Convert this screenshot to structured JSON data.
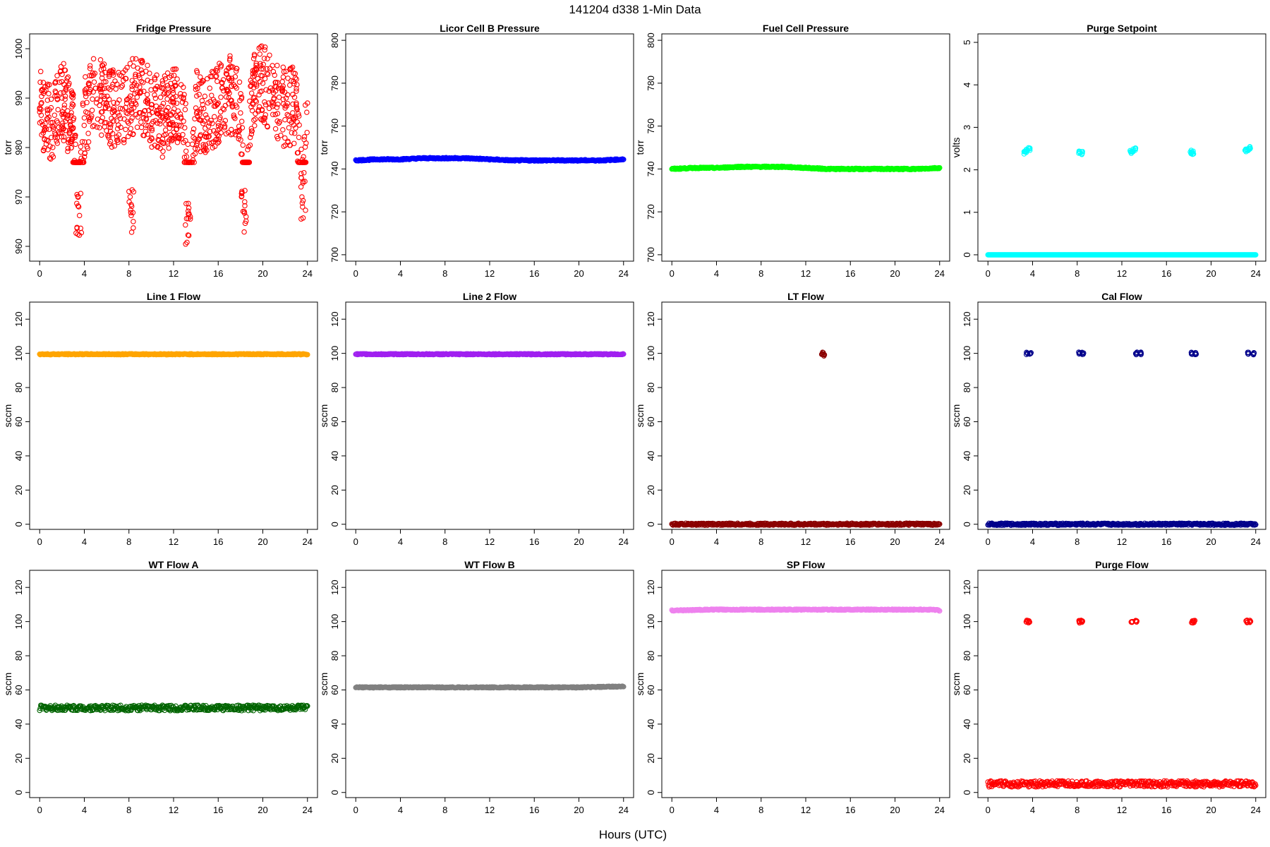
{
  "figure": {
    "title": "141204   d338   1-Min Data",
    "xlabel": "Hours (UTC)"
  },
  "chart_data": [
    {
      "type": "scatter",
      "title": "Fridge Pressure",
      "ylabel": "torr",
      "color": "#ff0000",
      "xlim": [
        0,
        24
      ],
      "ylim": [
        957,
        1003
      ],
      "xticks": [
        0,
        4,
        8,
        12,
        16,
        20,
        24
      ],
      "yticks": [
        960,
        970,
        980,
        990,
        1000
      ],
      "x": [
        0,
        1,
        2,
        3,
        3.5,
        4,
        5,
        6,
        7,
        8,
        9,
        10,
        11,
        12,
        13,
        13.5,
        14,
        15,
        16,
        17,
        18,
        18.5,
        19,
        20,
        21,
        22,
        23,
        23.5,
        24
      ],
      "y": [
        988,
        985,
        990,
        984,
        968,
        986,
        992,
        989,
        987,
        990,
        991,
        988,
        986,
        989,
        984,
        966,
        988,
        986,
        989,
        991,
        987,
        966,
        991,
        993,
        990,
        988,
        989,
        970,
        989
      ],
      "dense_band": [
        980,
        998
      ]
    },
    {
      "type": "scatter",
      "title": "Licor Cell B Pressure",
      "ylabel": "torr",
      "color": "#0000ff",
      "xlim": [
        0,
        24
      ],
      "ylim": [
        697,
        803
      ],
      "xticks": [
        0,
        4,
        8,
        12,
        16,
        20,
        24
      ],
      "yticks": [
        700,
        720,
        740,
        760,
        780,
        800
      ],
      "x": [
        0,
        2,
        4,
        6,
        8,
        10,
        12,
        14,
        16,
        18,
        20,
        22,
        24
      ],
      "y": [
        744,
        744.5,
        744.5,
        745,
        745,
        745,
        744.5,
        744,
        744,
        744,
        744,
        744,
        744.5
      ]
    },
    {
      "type": "scatter",
      "title": "Fuel Cell Pressure",
      "ylabel": "torr",
      "color": "#00ff00",
      "xlim": [
        0,
        24
      ],
      "ylim": [
        697,
        803
      ],
      "xticks": [
        0,
        4,
        8,
        12,
        16,
        20,
        24
      ],
      "yticks": [
        700,
        720,
        740,
        760,
        780,
        800
      ],
      "x": [
        0,
        2,
        4,
        6,
        8,
        10,
        12,
        14,
        16,
        18,
        20,
        22,
        24
      ],
      "y": [
        740,
        740.5,
        740.5,
        741,
        741,
        741,
        740.5,
        740,
        740,
        740,
        740,
        740,
        740.5
      ]
    },
    {
      "type": "scatter",
      "title": "Purge Setpoint",
      "ylabel": "volts",
      "color": "#00ffff",
      "xlim": [
        0,
        24
      ],
      "ylim": [
        -0.15,
        5.2
      ],
      "xticks": [
        0,
        4,
        8,
        12,
        16,
        20,
        24
      ],
      "yticks": [
        0,
        1,
        2,
        3,
        4,
        5
      ],
      "x": [
        0,
        3.3,
        3.5,
        3.7,
        8.2,
        8.4,
        12.8,
        13.0,
        13.2,
        18.2,
        18.4,
        23.1,
        23.3,
        23.5,
        24
      ],
      "y": [
        0,
        2.4,
        2.45,
        2.5,
        2.42,
        2.4,
        2.42,
        2.45,
        2.48,
        2.42,
        2.4,
        2.45,
        2.48,
        2.52,
        0
      ],
      "baseline": 0
    },
    {
      "type": "scatter",
      "title": "Line 1 Flow",
      "ylabel": "sccm",
      "color": "#ffa500",
      "xlim": [
        0,
        24
      ],
      "ylim": [
        -3,
        130
      ],
      "xticks": [
        0,
        4,
        8,
        12,
        16,
        20,
        24
      ],
      "yticks": [
        0,
        20,
        40,
        60,
        80,
        100,
        120
      ],
      "x": [
        0,
        24
      ],
      "y": [
        99.5,
        99.5
      ]
    },
    {
      "type": "scatter",
      "title": "Line 2 Flow",
      "ylabel": "sccm",
      "color": "#a020f0",
      "xlim": [
        0,
        24
      ],
      "ylim": [
        -3,
        130
      ],
      "xticks": [
        0,
        4,
        8,
        12,
        16,
        20,
        24
      ],
      "yticks": [
        0,
        20,
        40,
        60,
        80,
        100,
        120
      ],
      "x": [
        0,
        24
      ],
      "y": [
        99.5,
        99.5
      ]
    },
    {
      "type": "scatter",
      "title": "LT Flow",
      "ylabel": "sccm",
      "color": "#8b0000",
      "xlim": [
        0,
        24
      ],
      "ylim": [
        -3,
        130
      ],
      "xticks": [
        0,
        4,
        8,
        12,
        16,
        20,
        24
      ],
      "yticks": [
        0,
        20,
        40,
        60,
        80,
        100,
        120
      ],
      "x": [
        0,
        13.5,
        13.6,
        24
      ],
      "y": [
        0,
        100,
        99,
        0
      ],
      "baseline": 0
    },
    {
      "type": "scatter",
      "title": "Cal Flow",
      "ylabel": "sccm",
      "color": "#00008b",
      "xlim": [
        0,
        24
      ],
      "ylim": [
        -3,
        130
      ],
      "xticks": [
        0,
        4,
        8,
        12,
        16,
        20,
        24
      ],
      "yticks": [
        0,
        20,
        40,
        60,
        80,
        100,
        120
      ],
      "x": [
        0,
        3.5,
        3.8,
        8.2,
        8.5,
        13.3,
        13.7,
        18.3,
        18.6,
        23.3,
        23.8,
        24
      ],
      "y": [
        0,
        100,
        100,
        100,
        100,
        100,
        100,
        100,
        100,
        100,
        100,
        0
      ],
      "baseline": 0
    },
    {
      "type": "scatter",
      "title": "WT Flow A",
      "ylabel": "sccm",
      "color": "#006400",
      "xlim": [
        0,
        24
      ],
      "ylim": [
        -3,
        130
      ],
      "xticks": [
        0,
        4,
        8,
        12,
        16,
        20,
        24
      ],
      "yticks": [
        0,
        20,
        40,
        60,
        80,
        100,
        120
      ],
      "x": [
        0,
        24
      ],
      "y": [
        49.5,
        49.5
      ]
    },
    {
      "type": "scatter",
      "title": "WT Flow B",
      "ylabel": "sccm",
      "color": "#808080",
      "xlim": [
        0,
        24
      ],
      "ylim": [
        -3,
        130
      ],
      "xticks": [
        0,
        4,
        8,
        12,
        16,
        20,
        24
      ],
      "yticks": [
        0,
        20,
        40,
        60,
        80,
        100,
        120
      ],
      "x": [
        0,
        12,
        20,
        24
      ],
      "y": [
        61.5,
        61.5,
        61.5,
        62
      ]
    },
    {
      "type": "scatter",
      "title": "SP Flow",
      "ylabel": "sccm",
      "color": "#ee82ee",
      "xlim": [
        0,
        24
      ],
      "ylim": [
        -3,
        130
      ],
      "xticks": [
        0,
        4,
        8,
        12,
        16,
        20,
        24
      ],
      "yticks": [
        0,
        20,
        40,
        60,
        80,
        100,
        120
      ],
      "x": [
        0,
        3.6,
        8.5,
        13.5,
        18.5,
        23.5,
        24
      ],
      "y": [
        106.5,
        107,
        107,
        107,
        107,
        107,
        106.5
      ]
    },
    {
      "type": "scatter",
      "title": "Purge Flow",
      "ylabel": "sccm",
      "color": "#ff0000",
      "xlim": [
        0,
        24
      ],
      "ylim": [
        -3,
        130
      ],
      "xticks": [
        0,
        4,
        8,
        12,
        16,
        20,
        24
      ],
      "yticks": [
        0,
        20,
        40,
        60,
        80,
        100,
        120
      ],
      "x": [
        0,
        3.5,
        3.7,
        8.2,
        8.4,
        12.9,
        13.3,
        18.3,
        18.5,
        23.2,
        23.5,
        24
      ],
      "y": [
        5,
        100,
        100,
        100,
        100,
        100,
        100,
        100,
        100,
        100,
        100,
        5
      ],
      "baseline": 5
    }
  ]
}
